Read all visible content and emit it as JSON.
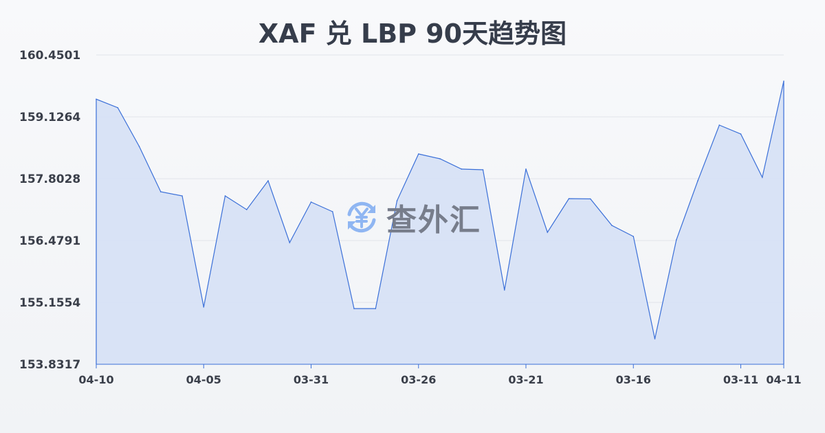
{
  "chart_data": {
    "type": "area",
    "title": "XAF 兑 LBP 90天趋势图",
    "xlabel": "",
    "ylabel": "",
    "ylim": [
      153.8317,
      160.4501
    ],
    "y_ticks": [
      "160.4501",
      "159.1264",
      "157.8028",
      "156.4791",
      "155.1554",
      "153.8317"
    ],
    "x_ticks": [
      {
        "index": 0,
        "label": "04-10"
      },
      {
        "index": 5,
        "label": "04-05"
      },
      {
        "index": 10,
        "label": "03-31"
      },
      {
        "index": 15,
        "label": "03-26"
      },
      {
        "index": 20,
        "label": "03-21"
      },
      {
        "index": 25,
        "label": "03-16"
      },
      {
        "index": 30,
        "label": "03-11"
      },
      {
        "index": 32,
        "label": "04-11"
      }
    ],
    "values": [
      159.504,
      159.322,
      158.494,
      157.523,
      157.435,
      155.057,
      157.435,
      157.141,
      157.759,
      156.435,
      157.303,
      157.097,
      155.023,
      155.023,
      157.332,
      158.332,
      158.229,
      158.009,
      157.994,
      155.42,
      158.009,
      156.655,
      157.376,
      157.37,
      156.802,
      156.567,
      154.376,
      156.494,
      157.759,
      158.95,
      158.759,
      157.832,
      159.891
    ],
    "grid": true,
    "line_color": "#3a6fd8",
    "fill_color": "#d7e1f5"
  },
  "watermark": {
    "text": "查外汇",
    "icon": "yen-exchange-icon",
    "icon_color": "#8fb6f2"
  }
}
